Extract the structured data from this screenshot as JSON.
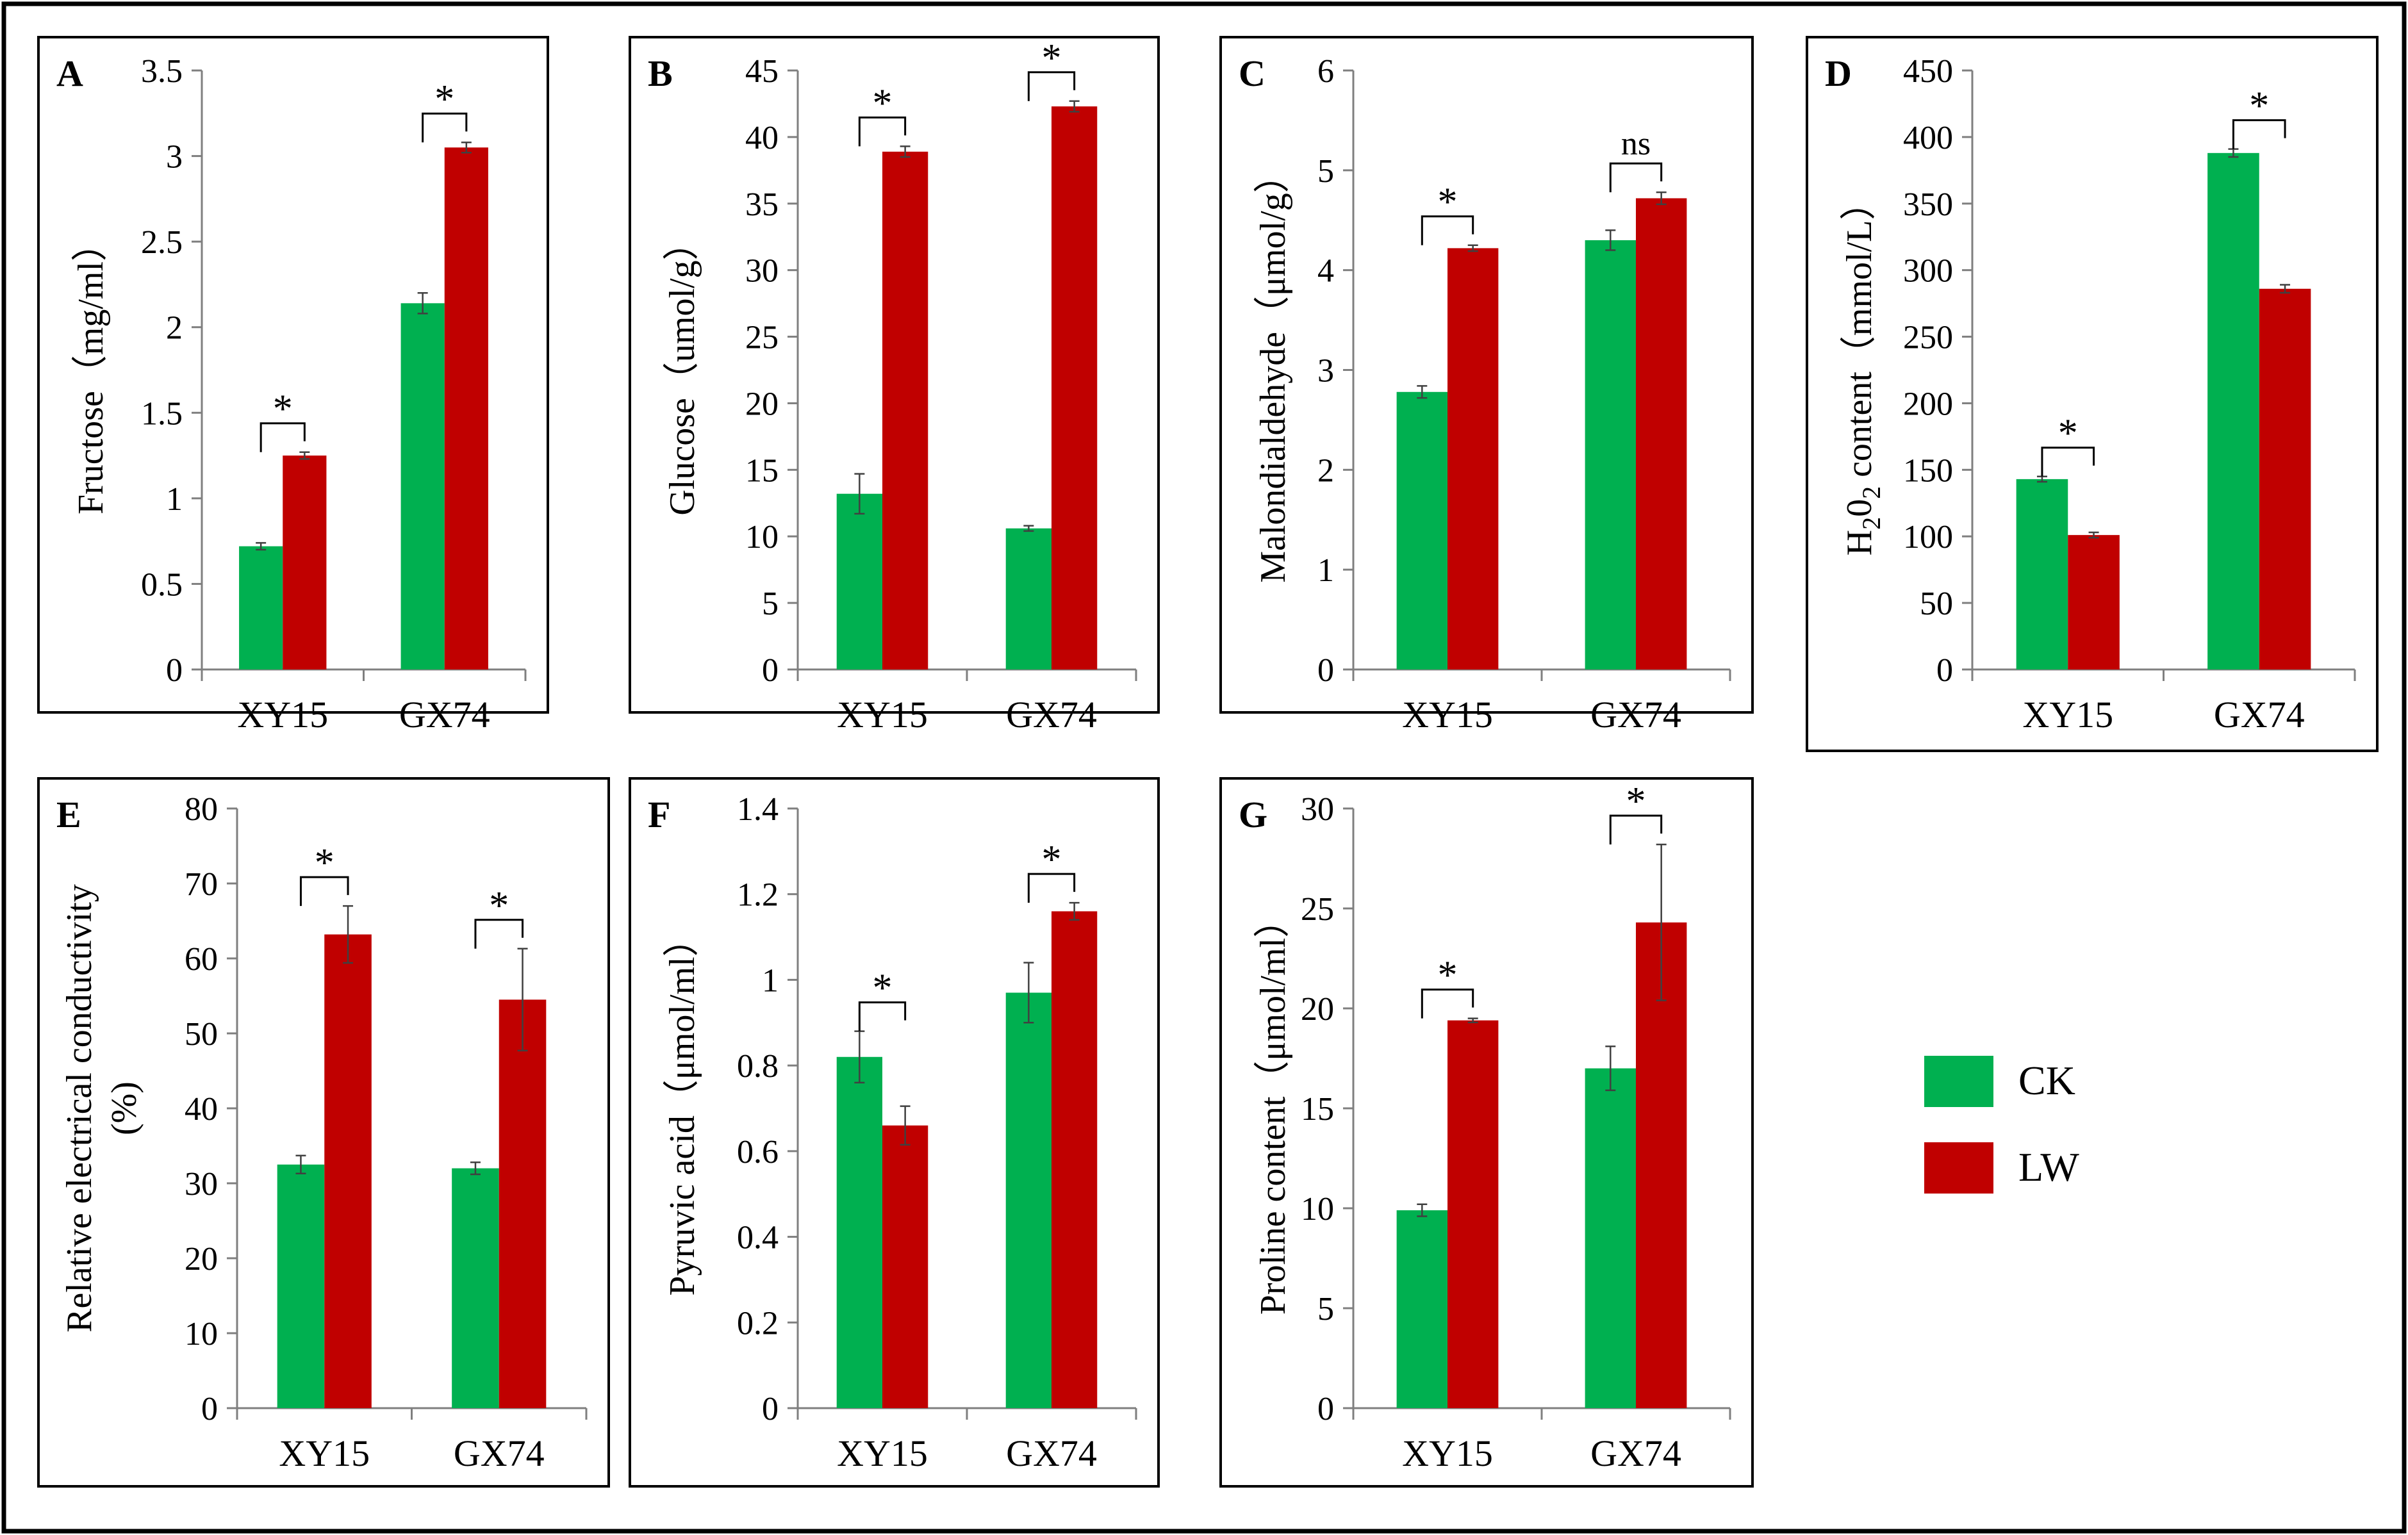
{
  "colors": {
    "ck": "#00b050",
    "lw": "#c00000",
    "axis": "#7f7f7f",
    "frame": "#000000"
  },
  "legend": [
    {
      "key": "ck",
      "label": "CK"
    },
    {
      "key": "lw",
      "label": "LW"
    }
  ],
  "chart_data": [
    {
      "type": "bar",
      "panel": "A",
      "categories": [
        "XY15",
        "GX74"
      ],
      "series": [
        {
          "name": "CK",
          "values": [
            0.72,
            2.14
          ],
          "errors": [
            0.02,
            0.06
          ]
        },
        {
          "name": "LW",
          "values": [
            1.25,
            3.05
          ],
          "errors": [
            0.02,
            0.03
          ]
        }
      ],
      "ylabel": "Fructose（mg/ml）",
      "ylim": [
        0,
        3.5
      ],
      "ystep": 0.5,
      "yticks": [
        "0",
        "0.5",
        "1",
        "1.5",
        "2",
        "2.5",
        "3",
        "3.5"
      ],
      "significance": [
        "*",
        "*"
      ]
    },
    {
      "type": "bar",
      "panel": "B",
      "categories": [
        "XY15",
        "GX74"
      ],
      "series": [
        {
          "name": "CK",
          "values": [
            13.2,
            10.6
          ],
          "errors": [
            1.5,
            0.2
          ]
        },
        {
          "name": "LW",
          "values": [
            38.9,
            42.3
          ],
          "errors": [
            0.4,
            0.4
          ]
        }
      ],
      "ylabel": "Glucose（umol/g）",
      "ylim": [
        0,
        45
      ],
      "ystep": 5,
      "yticks": [
        "0",
        "5",
        "10",
        "15",
        "20",
        "25",
        "30",
        "35",
        "40",
        "45"
      ],
      "significance": [
        "*",
        "*"
      ]
    },
    {
      "type": "bar",
      "panel": "C",
      "categories": [
        "XY15",
        "GX74"
      ],
      "series": [
        {
          "name": "CK",
          "values": [
            2.78,
            4.3
          ],
          "errors": [
            0.06,
            0.1
          ]
        },
        {
          "name": "LW",
          "values": [
            4.22,
            4.72
          ],
          "errors": [
            0.03,
            0.06
          ]
        }
      ],
      "ylabel": "Malondialdehyde（μmol/g）",
      "ylim": [
        0,
        6
      ],
      "ystep": 1,
      "yticks": [
        "0",
        "1",
        "2",
        "3",
        "4",
        "5",
        "6"
      ],
      "significance": [
        "*",
        "ns"
      ]
    },
    {
      "type": "bar",
      "panel": "D",
      "categories": [
        "XY15",
        "GX74"
      ],
      "series": [
        {
          "name": "CK",
          "values": [
            143,
            388
          ],
          "errors": [
            2,
            3
          ]
        },
        {
          "name": "LW",
          "values": [
            101,
            286
          ],
          "errors": [
            2,
            3
          ]
        }
      ],
      "ylabel": "H202 content（mmol/L）",
      "ylim": [
        0,
        450
      ],
      "ystep": 50,
      "yticks": [
        "0",
        "50",
        "100",
        "150",
        "200",
        "250",
        "300",
        "350",
        "400",
        "450"
      ],
      "significance": [
        "*",
        "*"
      ]
    },
    {
      "type": "bar",
      "panel": "E",
      "categories": [
        "XY15",
        "GX74"
      ],
      "series": [
        {
          "name": "CK",
          "values": [
            32.5,
            32.0
          ],
          "errors": [
            1.2,
            0.8
          ]
        },
        {
          "name": "LW",
          "values": [
            63.2,
            54.5
          ],
          "errors": [
            3.8,
            6.8
          ]
        }
      ],
      "ylabel": "Relative electrical conductivity",
      "ylabel2": "(%)",
      "ylim": [
        0,
        80
      ],
      "ystep": 10,
      "yticks": [
        "0",
        "10",
        "20",
        "30",
        "40",
        "50",
        "60",
        "70",
        "80"
      ],
      "significance": [
        "*",
        "*"
      ]
    },
    {
      "type": "bar",
      "panel": "F",
      "categories": [
        "XY15",
        "GX74"
      ],
      "series": [
        {
          "name": "CK",
          "values": [
            0.82,
            0.97
          ],
          "errors": [
            0.06,
            0.07
          ]
        },
        {
          "name": "LW",
          "values": [
            0.66,
            1.16
          ],
          "errors": [
            0.045,
            0.02
          ]
        }
      ],
      "ylabel": "Pyruvic acid（μmol/ml）",
      "ylim": [
        0,
        1.4
      ],
      "ystep": 0.2,
      "yticks": [
        "0",
        "0.2",
        "0.4",
        "0.6",
        "0.8",
        "1",
        "1.2",
        "1.4"
      ],
      "significance": [
        "*",
        "*"
      ]
    },
    {
      "type": "bar",
      "panel": "G",
      "categories": [
        "XY15",
        "GX74"
      ],
      "series": [
        {
          "name": "CK",
          "values": [
            9.9,
            17.0
          ],
          "errors": [
            0.3,
            1.1
          ]
        },
        {
          "name": "LW",
          "values": [
            19.4,
            24.3
          ],
          "errors": [
            0.1,
            3.9
          ]
        }
      ],
      "ylabel": "Proline content（μmol/ml）",
      "ylim": [
        0,
        30
      ],
      "ystep": 5,
      "yticks": [
        "0",
        "5",
        "10",
        "15",
        "20",
        "25",
        "30"
      ],
      "significance": [
        "*",
        "*"
      ]
    }
  ]
}
